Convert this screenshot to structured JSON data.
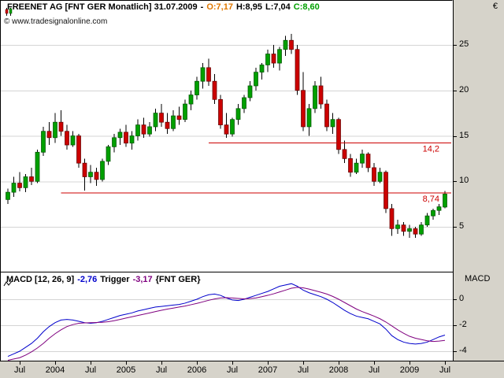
{
  "header": {
    "title": "FREENET AG [FNT GER  Monatlich] 31.07.2009",
    "separator": "-",
    "open": "O:7,17",
    "high": "H:8,95",
    "low": "L:7,04",
    "close": "C:8,60",
    "watermark": "© www.tradesignalonline.com"
  },
  "macd_header": {
    "title": "MACD [12, 26, 9]",
    "macd_value": "-2,76",
    "trigger_label": "Trigger",
    "trigger_value": "-3,17",
    "scope": "{FNT GER}"
  },
  "price_axis": {
    "currency": "€",
    "ticks": [
      25,
      20,
      15,
      10,
      5
    ]
  },
  "macd_axis": {
    "label": "MACD",
    "ticks": [
      0,
      -2,
      -4
    ]
  },
  "x_axis": {
    "ticks": [
      {
        "label": "Jul",
        "index": 2
      },
      {
        "label": "2004",
        "index": 8
      },
      {
        "label": "Jul",
        "index": 14
      },
      {
        "label": "2005",
        "index": 20
      },
      {
        "label": "Jul",
        "index": 26
      },
      {
        "label": "2006",
        "index": 32
      },
      {
        "label": "Jul",
        "index": 38
      },
      {
        "label": "2007",
        "index": 44
      },
      {
        "label": "Jul",
        "index": 50
      },
      {
        "label": "2008",
        "index": 56
      },
      {
        "label": "Jul",
        "index": 62
      },
      {
        "label": "2009",
        "index": 68
      },
      {
        "label": "Jul",
        "index": 74
      }
    ]
  },
  "colors": {
    "up_candle": "#00a000",
    "up_border": "#005500",
    "down_candle": "#cc0000",
    "down_border": "#660000",
    "wick": "#000000",
    "grid": "#d4d4d4",
    "trendline": "#cc0000",
    "macd_line": "#0000cc",
    "trigger_line": "#7f007f",
    "axis_bg": "#d6d3ca",
    "open_text": "#e07800",
    "close_text": "#00a000"
  },
  "chart_data": [
    {
      "type": "candlestick",
      "title": "FREENET AG [FNT GER] Monatlich (monthly), as of 31.07.2009",
      "currency": "EUR",
      "last_bar": {
        "date": "31.07.2009",
        "open": 7.17,
        "high": 8.95,
        "low": 7.04,
        "close": 8.6
      },
      "start_month": "2003-05",
      "end_month": "2009-07",
      "ylim": [
        0,
        27
      ],
      "grid": true,
      "hlines": [
        {
          "value": 14.2,
          "label": "14,2",
          "start_index": 34
        },
        {
          "value": 8.74,
          "label": "8,74",
          "start_index": 9
        }
      ],
      "ohlc": [
        [
          8.0,
          9.2,
          7.5,
          8.8
        ],
        [
          8.8,
          10.5,
          8.3,
          9.8
        ],
        [
          9.8,
          11.0,
          8.9,
          9.3
        ],
        [
          9.3,
          10.8,
          8.8,
          10.5
        ],
        [
          10.5,
          11.5,
          9.6,
          10.0
        ],
        [
          10.0,
          13.5,
          9.8,
          13.2
        ],
        [
          13.2,
          16.0,
          12.8,
          15.5
        ],
        [
          15.5,
          16.5,
          14.0,
          14.8
        ],
        [
          14.8,
          17.5,
          14.2,
          16.5
        ],
        [
          16.5,
          17.8,
          15.0,
          15.5
        ],
        [
          15.5,
          16.2,
          13.5,
          14.0
        ],
        [
          14.0,
          15.5,
          13.8,
          15.0
        ],
        [
          15.0,
          15.2,
          11.5,
          12.0
        ],
        [
          12.0,
          12.5,
          9.0,
          10.5
        ],
        [
          10.5,
          11.8,
          9.8,
          11.0
        ],
        [
          11.0,
          11.5,
          9.5,
          10.2
        ],
        [
          10.2,
          12.5,
          10.0,
          12.2
        ],
        [
          12.2,
          14.0,
          11.8,
          13.8
        ],
        [
          13.8,
          15.2,
          13.2,
          14.8
        ],
        [
          14.8,
          15.8,
          14.0,
          15.4
        ],
        [
          15.4,
          16.2,
          13.8,
          14.2
        ],
        [
          14.2,
          15.5,
          13.5,
          15.0
        ],
        [
          15.0,
          16.8,
          14.5,
          16.2
        ],
        [
          16.2,
          17.0,
          14.8,
          15.2
        ],
        [
          15.2,
          16.5,
          14.9,
          16.0
        ],
        [
          16.0,
          18.0,
          15.5,
          17.5
        ],
        [
          17.5,
          18.5,
          16.0,
          16.5
        ],
        [
          16.5,
          17.5,
          15.2,
          15.8
        ],
        [
          15.8,
          17.8,
          15.5,
          17.2
        ],
        [
          17.2,
          18.2,
          16.2,
          16.8
        ],
        [
          16.8,
          19.0,
          16.5,
          18.5
        ],
        [
          18.5,
          20.0,
          17.8,
          19.5
        ],
        [
          19.5,
          21.5,
          19.0,
          21.0
        ],
        [
          21.0,
          23.0,
          20.2,
          22.5
        ],
        [
          22.5,
          23.5,
          20.5,
          21.0
        ],
        [
          21.0,
          21.8,
          18.5,
          19.0
        ],
        [
          19.0,
          19.5,
          15.8,
          16.2
        ],
        [
          16.2,
          17.5,
          14.8,
          15.2
        ],
        [
          15.2,
          17.0,
          14.9,
          16.8
        ],
        [
          16.8,
          18.5,
          16.2,
          18.0
        ],
        [
          18.0,
          19.5,
          17.5,
          19.2
        ],
        [
          19.2,
          21.0,
          18.8,
          20.5
        ],
        [
          20.5,
          22.5,
          20.0,
          22.0
        ],
        [
          22.0,
          23.0,
          21.2,
          22.8
        ],
        [
          22.8,
          24.5,
          22.0,
          24.0
        ],
        [
          24.0,
          25.0,
          22.5,
          23.0
        ],
        [
          23.0,
          24.8,
          22.2,
          24.5
        ],
        [
          24.5,
          26.0,
          23.8,
          25.5
        ],
        [
          25.5,
          26.2,
          24.0,
          24.5
        ],
        [
          24.5,
          25.0,
          19.5,
          20.0
        ],
        [
          20.0,
          22.0,
          15.5,
          16.0
        ],
        [
          16.0,
          18.5,
          15.0,
          18.0
        ],
        [
          18.0,
          21.0,
          17.5,
          20.5
        ],
        [
          20.5,
          21.5,
          18.0,
          18.5
        ],
        [
          18.5,
          19.0,
          15.5,
          16.0
        ],
        [
          16.0,
          17.5,
          15.2,
          16.8
        ],
        [
          16.8,
          17.0,
          13.0,
          13.5
        ],
        [
          13.5,
          14.5,
          12.0,
          12.5
        ],
        [
          12.5,
          13.0,
          10.5,
          11.0
        ],
        [
          11.0,
          12.5,
          10.8,
          12.0
        ],
        [
          12.0,
          13.5,
          11.5,
          13.0
        ],
        [
          13.0,
          13.2,
          11.0,
          11.5
        ],
        [
          11.5,
          12.0,
          9.5,
          10.0
        ],
        [
          10.0,
          11.5,
          9.8,
          11.0
        ],
        [
          11.0,
          11.2,
          6.5,
          7.0
        ],
        [
          7.0,
          7.5,
          4.0,
          4.8
        ],
        [
          4.8,
          5.8,
          4.2,
          5.2
        ],
        [
          5.2,
          5.5,
          4.0,
          4.5
        ],
        [
          4.5,
          5.2,
          3.8,
          4.8
        ],
        [
          4.8,
          5.0,
          3.8,
          4.2
        ],
        [
          4.2,
          5.5,
          4.0,
          5.2
        ],
        [
          5.2,
          6.5,
          5.0,
          6.2
        ],
        [
          6.2,
          7.0,
          5.8,
          6.8
        ],
        [
          6.8,
          7.5,
          6.3,
          7.2
        ],
        [
          7.17,
          8.95,
          7.04,
          8.6
        ]
      ]
    },
    {
      "type": "line",
      "title": "MACD [12, 26, 9] {FNT GER}",
      "ylim": [
        -4.7,
        2.1
      ],
      "grid": true,
      "series": [
        {
          "name": "MACD",
          "color": "#0000cc",
          "last_value": -2.76,
          "values": [
            -4.4,
            -4.2,
            -4.0,
            -3.7,
            -3.4,
            -3.0,
            -2.5,
            -2.1,
            -1.8,
            -1.6,
            -1.55,
            -1.6,
            -1.7,
            -1.8,
            -1.85,
            -1.8,
            -1.7,
            -1.55,
            -1.4,
            -1.25,
            -1.15,
            -1.05,
            -0.9,
            -0.8,
            -0.7,
            -0.6,
            -0.55,
            -0.5,
            -0.45,
            -0.4,
            -0.3,
            -0.15,
            0.0,
            0.2,
            0.35,
            0.4,
            0.3,
            0.1,
            -0.05,
            -0.1,
            0.0,
            0.15,
            0.3,
            0.45,
            0.6,
            0.8,
            1.0,
            1.1,
            1.2,
            1.0,
            0.7,
            0.5,
            0.35,
            0.2,
            0.0,
            -0.25,
            -0.55,
            -0.85,
            -1.1,
            -1.3,
            -1.4,
            -1.5,
            -1.7,
            -1.9,
            -2.3,
            -2.8,
            -3.1,
            -3.3,
            -3.4,
            -3.45,
            -3.4,
            -3.3,
            -3.1,
            -2.9,
            -2.76
          ]
        },
        {
          "name": "Trigger",
          "color": "#7f007f",
          "last_value": -3.17,
          "values": [
            -4.7,
            -4.6,
            -4.5,
            -4.3,
            -4.05,
            -3.75,
            -3.4,
            -3.0,
            -2.65,
            -2.35,
            -2.1,
            -1.95,
            -1.85,
            -1.82,
            -1.8,
            -1.79,
            -1.77,
            -1.73,
            -1.65,
            -1.55,
            -1.45,
            -1.35,
            -1.25,
            -1.15,
            -1.05,
            -0.95,
            -0.85,
            -0.76,
            -0.68,
            -0.6,
            -0.52,
            -0.42,
            -0.32,
            -0.2,
            -0.08,
            0.02,
            0.1,
            0.12,
            0.1,
            0.06,
            0.03,
            0.05,
            0.1,
            0.2,
            0.3,
            0.42,
            0.56,
            0.7,
            0.85,
            0.92,
            0.88,
            0.78,
            0.66,
            0.54,
            0.4,
            0.22,
            0.0,
            -0.25,
            -0.5,
            -0.75,
            -0.95,
            -1.12,
            -1.3,
            -1.5,
            -1.75,
            -2.05,
            -2.35,
            -2.62,
            -2.85,
            -3.0,
            -3.1,
            -3.2,
            -3.25,
            -3.22,
            -3.17
          ]
        }
      ]
    }
  ]
}
